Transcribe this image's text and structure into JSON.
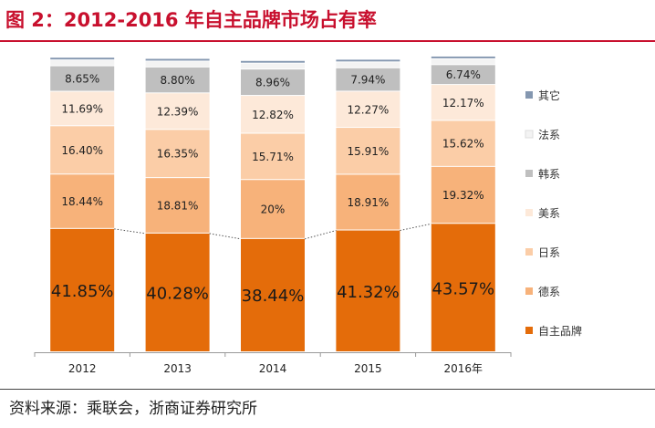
{
  "figure": {
    "title": "图 2：2012-2016 年自主品牌市场占有率",
    "source": "资料来源：乘联会，浙商证券研究所"
  },
  "chart_data": {
    "type": "bar",
    "stacked": true,
    "categories": [
      "2012",
      "2013",
      "2014",
      "2015",
      "2016年"
    ],
    "series": [
      {
        "name": "自主品牌",
        "color": "#e46c0a",
        "values": [
          41.85,
          40.28,
          38.44,
          41.32,
          43.57
        ],
        "labels": [
          "41.85%",
          "40.28%",
          "38.44%",
          "41.32%",
          "43.57%"
        ]
      },
      {
        "name": "德系",
        "color": "#f7b27a",
        "values": [
          18.44,
          18.81,
          20,
          18.91,
          19.32
        ],
        "labels": [
          "18.44%",
          "18.81%",
          "20%",
          "18.91%",
          "19.32%"
        ]
      },
      {
        "name": "日系",
        "color": "#fbcda7",
        "values": [
          16.4,
          16.35,
          15.71,
          15.91,
          15.62
        ],
        "labels": [
          "16.40%",
          "16.35%",
          "15.71%",
          "15.91%",
          "15.62%"
        ]
      },
      {
        "name": "美系",
        "color": "#fde9d9",
        "values": [
          11.69,
          12.39,
          12.82,
          12.27,
          12.17
        ],
        "labels": [
          "11.69%",
          "12.39%",
          "12.82%",
          "12.27%",
          "12.17%"
        ]
      },
      {
        "name": "韩系",
        "color": "#bfbfbf",
        "values": [
          8.65,
          8.8,
          8.96,
          7.94,
          6.74
        ],
        "labels": [
          "8.65%",
          "8.80%",
          "8.96%",
          "7.94%",
          "6.74%"
        ]
      },
      {
        "name": "法系",
        "color": "#f3f3f3",
        "values": [
          2.0,
          2.0,
          2.0,
          2.0,
          2.0
        ],
        "labels": []
      },
      {
        "name": "其它",
        "color": "#8497b0",
        "values": [
          0.9,
          0.9,
          0.9,
          0.9,
          0.9
        ],
        "labels": []
      }
    ],
    "ylim": [
      0,
      100
    ],
    "legend_position": "right",
    "trend_line_series": "自主品牌",
    "xlabel": "",
    "ylabel": ""
  }
}
